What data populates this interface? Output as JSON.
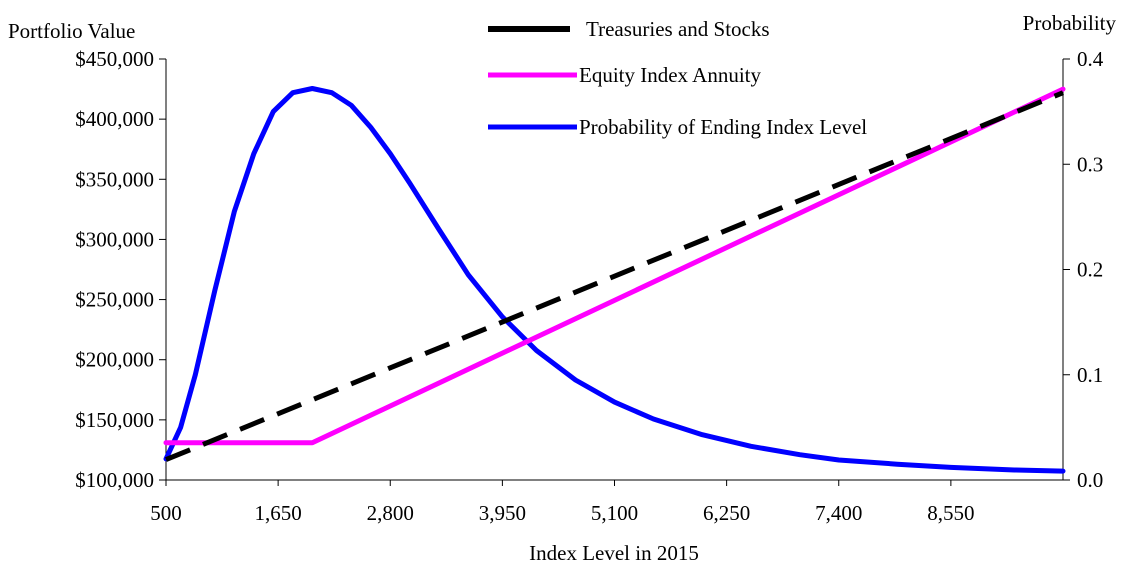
{
  "chart_data": {
    "type": "line",
    "x_axis_title": "Index Level in 2015",
    "y_left_title": "Portfolio Value",
    "y_right_title": "Probability",
    "x_ticks": [
      "500",
      "1,650",
      "2,800",
      "3,950",
      "5,100",
      "6,250",
      "7,400",
      "8,550"
    ],
    "x_tick_values": [
      500,
      1650,
      2800,
      3950,
      5100,
      6250,
      7400,
      8550
    ],
    "y_left_ticks": [
      "$100,000",
      "$150,000",
      "$200,000",
      "$250,000",
      "$300,000",
      "$350,000",
      "$400,000",
      "$450,000"
    ],
    "y_left_tick_values": [
      100000,
      150000,
      200000,
      250000,
      300000,
      350000,
      400000,
      450000
    ],
    "y_right_ticks": [
      "0.0",
      "0.1",
      "0.2",
      "0.3",
      "0.4"
    ],
    "y_right_tick_values": [
      0,
      0.1,
      0.2,
      0.3,
      0.4
    ],
    "xlim": [
      500,
      9700
    ],
    "y_left_lim": [
      100000,
      450000
    ],
    "y_right_lim": [
      0,
      0.4
    ],
    "legend_position": "top-center",
    "series": [
      {
        "name": "Treasuries and Stocks",
        "axis": "left",
        "color": "#000000",
        "dashed": true,
        "x": [
          500,
          9700
        ],
        "y": [
          117000,
          422000
        ]
      },
      {
        "name": "Equity Index Annuity",
        "axis": "left",
        "color": "#ff00ff",
        "dashed": false,
        "x": [
          500,
          2000,
          9700
        ],
        "y": [
          131000,
          131000,
          425000
        ]
      },
      {
        "name": "Probability of Ending Index Level",
        "axis": "right",
        "color": "#0000ff",
        "dashed": false,
        "x": [
          500,
          650,
          800,
          1000,
          1200,
          1400,
          1600,
          1800,
          2000,
          2200,
          2400,
          2600,
          2800,
          3000,
          3300,
          3600,
          3950,
          4300,
          4700,
          5100,
          5500,
          6000,
          6500,
          7000,
          7400,
          8000,
          8550,
          9200,
          9700
        ],
        "y": [
          0.02,
          0.05,
          0.1,
          0.18,
          0.255,
          0.31,
          0.35,
          0.368,
          0.372,
          0.368,
          0.356,
          0.335,
          0.31,
          0.282,
          0.238,
          0.195,
          0.155,
          0.123,
          0.095,
          0.074,
          0.058,
          0.043,
          0.032,
          0.024,
          0.019,
          0.015,
          0.012,
          0.0095,
          0.0085
        ]
      }
    ]
  }
}
